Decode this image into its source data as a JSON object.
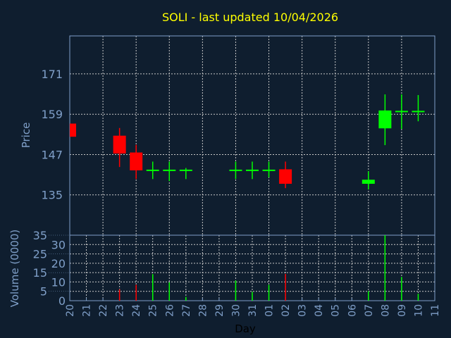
{
  "chart_data": {
    "type": "candlestick",
    "title": "SOLI - last updated 10/04/2026",
    "xlabel": "Day",
    "ylabel_price": "Price",
    "ylabel_volume": "Volume (0000)",
    "x_ticks": [
      "20",
      "21",
      "22",
      "23",
      "24",
      "25",
      "26",
      "27",
      "28",
      "29",
      "30",
      "31",
      "01",
      "02",
      "03",
      "04",
      "05",
      "06",
      "07",
      "08",
      "09",
      "10",
      "11"
    ],
    "price_ylim": [
      123,
      182.3
    ],
    "price_ticks": [
      135,
      147,
      159,
      171
    ],
    "volume_ylim": [
      0,
      35
    ],
    "volume_ticks": [
      0,
      5,
      10,
      15,
      20,
      25,
      30,
      35
    ],
    "grid": true,
    "colors": {
      "background": "#0f1e2f",
      "axis": "#7f9fc8",
      "title": "#ffff00",
      "up": "#00ff00",
      "down": "#ff0000",
      "grid": "#c8c8c8",
      "xlabel": "#000000"
    },
    "candles": [
      {
        "day": "20",
        "open": 156.0,
        "high": 156.0,
        "low": 152.3,
        "close": 152.3,
        "volume": 0
      },
      {
        "day": "23",
        "open": 152.4,
        "high": 154.9,
        "low": 143.3,
        "close": 147.3,
        "volume": 6.1
      },
      {
        "day": "24",
        "open": 147.4,
        "high": 149.9,
        "low": 139.7,
        "close": 142.3,
        "volume": 8.5
      },
      {
        "day": "25",
        "open": 142.3,
        "high": 144.9,
        "low": 139.7,
        "close": 142.3,
        "volume": 14.2
      },
      {
        "day": "26",
        "open": 142.3,
        "high": 144.9,
        "low": 139.1,
        "close": 142.3,
        "volume": 9.8
      },
      {
        "day": "27",
        "open": 142.3,
        "high": 143.0,
        "low": 139.7,
        "close": 142.3,
        "volume": 2.0
      },
      {
        "day": "30",
        "open": 142.3,
        "high": 144.9,
        "low": 139.7,
        "close": 142.3,
        "volume": 10.8
      },
      {
        "day": "31",
        "open": 142.3,
        "high": 144.9,
        "low": 139.7,
        "close": 142.3,
        "volume": 4.7
      },
      {
        "day": "01",
        "open": 142.3,
        "high": 144.9,
        "low": 140.2,
        "close": 142.3,
        "volume": 8.5
      },
      {
        "day": "02",
        "open": 142.4,
        "high": 144.9,
        "low": 137.0,
        "close": 138.3,
        "volume": 14.3
      },
      {
        "day": "07",
        "open": 138.3,
        "high": 142.0,
        "low": 136.6,
        "close": 139.3,
        "volume": 5.1
      },
      {
        "day": "08",
        "open": 154.8,
        "high": 164.9,
        "low": 149.8,
        "close": 159.9,
        "volume": 35.0
      },
      {
        "day": "09",
        "open": 159.8,
        "high": 164.9,
        "low": 154.6,
        "close": 159.8,
        "volume": 12.7
      },
      {
        "day": "10",
        "open": 159.8,
        "high": 164.7,
        "low": 156.9,
        "close": 159.8,
        "volume": 3.7
      }
    ]
  }
}
